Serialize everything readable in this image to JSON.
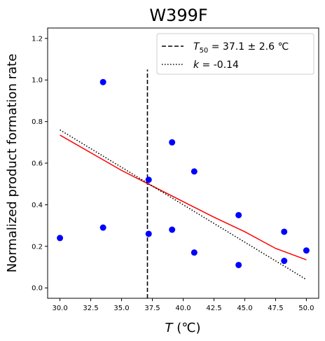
{
  "chart_data": {
    "type": "scatter",
    "title": "W399F",
    "xlabel_var": "T",
    "xlabel_unit": " (℃)",
    "ylabel": "Normalized product formation rate",
    "xlim": [
      29.0,
      51.0
    ],
    "ylim": [
      -0.05,
      1.25
    ],
    "xticks": [
      30.0,
      32.5,
      35.0,
      37.5,
      40.0,
      42.5,
      45.0,
      47.5,
      50.0
    ],
    "xtick_labels": [
      "30.0",
      "32.5",
      "35.0",
      "37.5",
      "40.0",
      "42.5",
      "45.0",
      "47.5",
      "50.0"
    ],
    "yticks": [
      0.0,
      0.2,
      0.4,
      0.6,
      0.8,
      1.0,
      1.2
    ],
    "ytick_labels": [
      "0.0",
      "0.2",
      "0.4",
      "0.6",
      "0.8",
      "1.0",
      "1.2"
    ],
    "grid": false,
    "legend_position": "top-right",
    "points": {
      "color": "#0000ff",
      "x": [
        30.0,
        33.5,
        33.5,
        37.2,
        37.2,
        39.1,
        39.1,
        40.9,
        40.9,
        44.5,
        44.5,
        48.2,
        48.2,
        50.0
      ],
      "y": [
        0.24,
        0.99,
        0.29,
        0.52,
        0.26,
        0.7,
        0.28,
        0.56,
        0.17,
        0.35,
        0.11,
        0.27,
        0.13,
        0.18
      ]
    },
    "fit_curve": {
      "color": "#ff0000",
      "x": [
        30.0,
        32.5,
        35.0,
        37.5,
        40.0,
        42.5,
        45.0,
        47.5,
        50.0
      ],
      "y": [
        0.735,
        0.65,
        0.565,
        0.49,
        0.415,
        0.34,
        0.27,
        0.19,
        0.135
      ]
    },
    "linear_fit": {
      "color": "#000000",
      "x": [
        30.0,
        50.0
      ],
      "y": [
        0.76,
        0.04
      ]
    },
    "t50_line": {
      "color": "#000000",
      "x": 37.1,
      "y_range": [
        -0.05,
        1.05
      ]
    },
    "legend": [
      {
        "style": "dashed",
        "var": "T",
        "sub": "50",
        "rest": " = 37.1 ± 2.6 ℃"
      },
      {
        "style": "dotted",
        "var": "k",
        "sub": "",
        "rest": " = -0.14"
      }
    ]
  }
}
